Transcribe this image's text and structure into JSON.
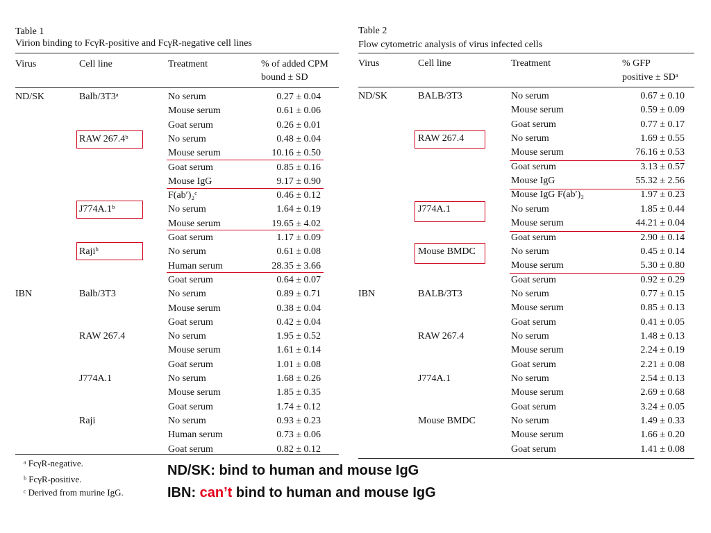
{
  "table1": {
    "label": "Table 1",
    "caption": "Virion binding to FcγR-positive and FcγR-negative cell lines",
    "headers": [
      "Virus",
      "Cell line",
      "Treatment",
      "% of added CPM",
      "bound ± SD"
    ],
    "rows": [
      [
        "ND/SK",
        "Balb/3T3ᵃ",
        "No serum",
        "0.27 ± 0.04"
      ],
      [
        "",
        "",
        "Mouse serum",
        "0.61 ± 0.06"
      ],
      [
        "",
        "",
        "Goat serum",
        "0.26 ± 0.01"
      ],
      [
        "",
        "RAW 267.4ᵇ",
        "No serum",
        "0.48 ± 0.04"
      ],
      [
        "",
        "",
        "Mouse serum",
        "10.16 ± 0.50"
      ],
      [
        "",
        "",
        "Goat serum",
        "0.85 ± 0.16"
      ],
      [
        "",
        "",
        "Mouse IgG",
        "9.17 ± 0.90"
      ],
      [
        "",
        "",
        "F(ab′)₂ᶜ",
        "0.46 ± 0.12"
      ],
      [
        "",
        "J774A.1ᵇ",
        "No serum",
        "1.64 ± 0.19"
      ],
      [
        "",
        "",
        "Mouse serum",
        "19.65 ± 4.02"
      ],
      [
        "",
        "",
        "Goat serum",
        "1.17 ± 0.09"
      ],
      [
        "",
        "Rajiᵇ",
        "No serum",
        "0.61 ± 0.08"
      ],
      [
        "",
        "",
        "Human serum",
        "28.35 ± 3.66"
      ],
      [
        "",
        "",
        "Goat serum",
        "0.64 ± 0.07"
      ],
      [
        "IBN",
        "Balb/3T3",
        "No serum",
        "0.89 ± 0.71"
      ],
      [
        "",
        "",
        "Mouse serum",
        "0.38 ± 0.04"
      ],
      [
        "",
        "",
        "Goat serum",
        "0.42 ± 0.04"
      ],
      [
        "",
        "RAW 267.4",
        "No serum",
        "1.95 ± 0.52"
      ],
      [
        "",
        "",
        "Mouse serum",
        "1.61 ± 0.14"
      ],
      [
        "",
        "",
        "Goat serum",
        "1.01 ± 0.08"
      ],
      [
        "",
        "J774A.1",
        "No serum",
        "1.68 ± 0.26"
      ],
      [
        "",
        "",
        "Mouse serum",
        "1.85 ± 0.35"
      ],
      [
        "",
        "",
        "Goat serum",
        "1.74 ± 0.12"
      ],
      [
        "",
        "Raji",
        "No serum",
        "0.93 ± 0.23"
      ],
      [
        "",
        "",
        "Human serum",
        "0.73 ± 0.06"
      ],
      [
        "",
        "",
        "Goat serum",
        "0.82 ± 0.12"
      ]
    ],
    "footnotes": [
      "ᵃ FcγR-negative.",
      "ᵇ FcγR-positive.",
      "ᶜ Derived from murine IgG."
    ]
  },
  "table2": {
    "label": "Table 2",
    "caption": "Flow cytometric analysis of virus infected cells",
    "headers": [
      "Virus",
      "Cell line",
      "Treatment",
      "% GFP",
      "positive ± SDᵃ"
    ],
    "rows": [
      [
        "ND/SK",
        "BALB/3T3",
        "No serum",
        "0.67 ± 0.10"
      ],
      [
        "",
        "",
        "Mouse serum",
        "0.59 ± 0.09"
      ],
      [
        "",
        "",
        "Goat serum",
        "0.77 ± 0.17"
      ],
      [
        "",
        "RAW 267.4",
        "No serum",
        "1.69 ± 0.55"
      ],
      [
        "",
        "",
        "Mouse serum",
        "76.16 ± 0.53"
      ],
      [
        "",
        "",
        "Goat serum",
        "3.13 ± 0.57"
      ],
      [
        "",
        "",
        "Mouse IgG",
        "55.32 ± 2.56"
      ],
      [
        "",
        "",
        "Mouse IgG F(ab′)₂",
        "1.97 ± 0.23"
      ],
      [
        "",
        "J774A.1",
        "No serum",
        "1.85 ± 0.44"
      ],
      [
        "",
        "",
        "Mouse serum",
        "44.21 ± 0.04"
      ],
      [
        "",
        "",
        "Goat serum",
        "2.90 ± 0.14"
      ],
      [
        "",
        "Mouse BMDC",
        "No serum",
        "0.45 ± 0.14"
      ],
      [
        "",
        "",
        "Mouse serum",
        "5.30 ± 0.80"
      ],
      [
        "",
        "",
        "Goat serum",
        "0.92 ± 0.29"
      ],
      [
        "IBN",
        "BALB/3T3",
        "No serum",
        "0.77 ± 0.15"
      ],
      [
        "",
        "",
        "Mouse serum",
        "0.85 ± 0.13"
      ],
      [
        "",
        "",
        "Goat serum",
        "0.41 ± 0.05"
      ],
      [
        "",
        "RAW 267.4",
        "No serum",
        "1.48 ± 0.13"
      ],
      [
        "",
        "",
        "Mouse serum",
        "2.24 ± 0.19"
      ],
      [
        "",
        "",
        "Goat serum",
        "2.21 ± 0.08"
      ],
      [
        "",
        "J774A.1",
        "No serum",
        "2.54 ± 0.13"
      ],
      [
        "",
        "",
        "Mouse serum",
        "2.69 ± 0.68"
      ],
      [
        "",
        "",
        "Goat serum",
        "3.24 ± 0.05"
      ],
      [
        "",
        "Mouse BMDC",
        "No serum",
        "1.49 ± 0.33"
      ],
      [
        "",
        "",
        "Mouse serum",
        "1.66 ± 0.20"
      ],
      [
        "",
        "",
        "Goat serum",
        "1.41 ± 0.08"
      ]
    ]
  },
  "summary": {
    "line1": "ND/SK: bind to human and mouse IgG",
    "line2_prefix": "IBN: ",
    "line2_highlight": "can’t",
    "line2_suffix": " bind to human and mouse IgG",
    "highlight_color": "#e3001b"
  }
}
